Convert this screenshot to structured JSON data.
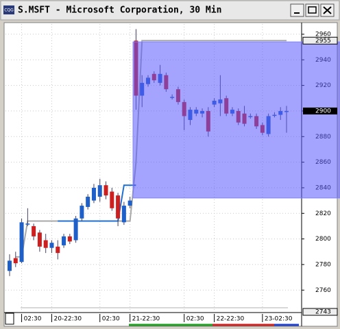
{
  "window": {
    "title": "S.MSFT - Microsoft Corporation, 30 Min",
    "icon": "CQG"
  },
  "chart_data": {
    "type": "candlestick",
    "categories": [
      null,
      null,
      "02:30",
      null,
      null,
      null,
      null,
      "20-22:30",
      null,
      null,
      null,
      null,
      null,
      null,
      null,
      "02:30",
      null,
      null,
      null,
      null,
      "21-22:30",
      null,
      null,
      null,
      null,
      null,
      null,
      null,
      null,
      "02:30",
      null,
      null,
      null,
      null,
      "22-22:30",
      null,
      null,
      null,
      null,
      null,
      null,
      null,
      "23-02:30",
      null,
      null,
      null,
      null
    ],
    "open": [
      2775,
      2785,
      2782,
      2812,
      2810,
      2805,
      2799,
      2793,
      2794,
      2795,
      2802,
      2799,
      2816,
      2825,
      2830,
      2833,
      2842,
      2837,
      2834,
      2813,
      2826,
      2955,
      2912,
      2921,
      2929,
      2922,
      2928,
      2911,
      2917,
      2907,
      2893,
      2898,
      2898,
      2900,
      2905,
      2906,
      2910,
      2898,
      2900,
      2898,
      2896,
      2896,
      2889,
      2882,
      2897,
      2897,
      2900
    ],
    "high": [
      2788,
      2790,
      2816,
      2824,
      2812,
      2807,
      2804,
      2799,
      2799,
      2804,
      2804,
      2818,
      2828,
      2835,
      2843,
      2847,
      2845,
      2840,
      2836,
      2829,
      2833,
      2964,
      2928,
      2928,
      2931,
      2936,
      2930,
      2913,
      2919,
      2909,
      2903,
      2903,
      2902,
      2903,
      2910,
      2928,
      2912,
      2903,
      2902,
      2904,
      2898,
      2898,
      2891,
      2898,
      2899,
      2903,
      2904
    ],
    "low": [
      2771,
      2778,
      2781,
      2810,
      2799,
      2790,
      2789,
      2789,
      2784,
      2793,
      2796,
      2797,
      2814,
      2823,
      2828,
      2829,
      2831,
      2822,
      2810,
      2811,
      2824,
      2901,
      2903,
      2919,
      2922,
      2920,
      2915,
      2909,
      2905,
      2885,
      2889,
      2896,
      2895,
      2880,
      2903,
      2896,
      2896,
      2896,
      2889,
      2888,
      2894,
      2886,
      2881,
      2880,
      2895,
      2893,
      2883
    ],
    "close": [
      2783,
      2781,
      2813,
      2812,
      2802,
      2794,
      2793,
      2797,
      2789,
      2802,
      2798,
      2816,
      2826,
      2833,
      2840,
      2842,
      2834,
      2824,
      2816,
      2826,
      2830,
      2912,
      2922,
      2926,
      2924,
      2929,
      2917,
      2911,
      2907,
      2896,
      2901,
      2901,
      2900,
      2884,
      2908,
      2909,
      2898,
      2901,
      2891,
      2890,
      2896,
      2888,
      2883,
      2896,
      2897,
      2900,
      2900
    ],
    "up_color": "#1f5fc8",
    "down_color": "#cc2020",
    "lines": [
      {
        "color": "#a8a8a8",
        "values": [
          null,
          2786,
          2786,
          2814,
          2814,
          2814,
          2814,
          2814,
          2814,
          2814,
          2814,
          2814,
          2814,
          2814,
          2814,
          2814,
          2814,
          2814,
          2814,
          2814,
          2814,
          2860,
          2955,
          2955,
          2955,
          2955,
          2955,
          2955,
          2955,
          2955,
          2955,
          2955,
          2955,
          2955,
          2955,
          2955,
          2955,
          2955,
          2955,
          2955,
          2955,
          2955,
          2955,
          2955,
          2955,
          2955,
          2955
        ]
      },
      {
        "color": "#1f6fd0",
        "values": [
          null,
          null,
          null,
          null,
          null,
          null,
          null,
          null,
          2814,
          2814,
          2814,
          2814,
          2814,
          2814,
          2814,
          2814,
          2814,
          2814,
          2814,
          2842,
          2842,
          2842,
          null,
          null,
          null,
          null,
          null,
          null,
          null,
          null,
          null,
          null,
          null,
          null,
          null,
          null,
          null,
          null,
          null,
          null,
          null,
          null,
          null,
          null,
          null,
          null,
          null
        ]
      }
    ],
    "zone": {
      "high": 2954,
      "low": 2832,
      "start": 21,
      "color": "#5a5aff"
    },
    "ylim": [
      2743,
      2968
    ],
    "yticks": [
      2760,
      2780,
      2800,
      2820,
      2840,
      2860,
      2880,
      2900,
      2920,
      2940,
      2960
    ],
    "last_price": 2900,
    "marker_labels": [
      2955,
      2743
    ],
    "grid": true
  }
}
